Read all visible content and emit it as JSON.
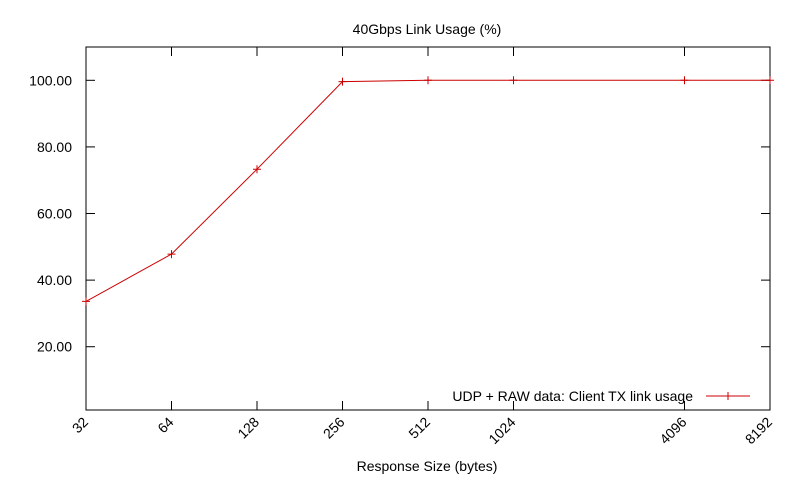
{
  "chart_data": {
    "type": "line",
    "title": "40Gbps Link Usage (%)",
    "xlabel": "Response Size (bytes)",
    "ylabel": "",
    "x_scale": "log2",
    "x_ticks": [
      "32",
      "64",
      "128",
      "256",
      "512",
      "1024",
      "4096",
      "8192"
    ],
    "y_ticks": [
      "20.00",
      "40.00",
      "60.00",
      "80.00",
      "100.00"
    ],
    "xlim": [
      32,
      8192
    ],
    "ylim": [
      1,
      110
    ],
    "grid": false,
    "legend_position": "bottom-right",
    "series": [
      {
        "name": "UDP + RAW data: Client TX link usage",
        "color": "#cc0000",
        "marker": "plus",
        "x": [
          32,
          64,
          128,
          256,
          512,
          1024,
          4096,
          8192
        ],
        "y": [
          33.6,
          47.8,
          73.3,
          99.6,
          100.0,
          100.0,
          100.0,
          100.0
        ]
      }
    ]
  }
}
